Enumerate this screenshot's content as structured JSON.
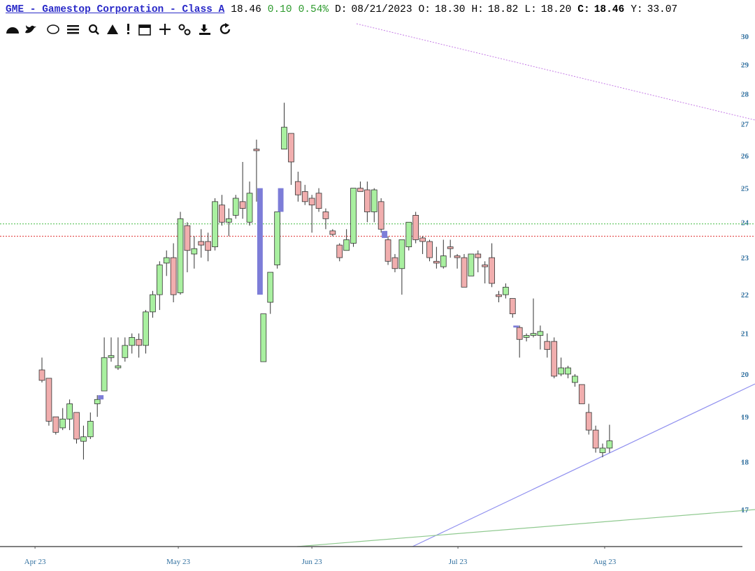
{
  "header": {
    "title": "GME - Gamestop Corporation - Class A",
    "price": "18.46",
    "change": "0.10",
    "change_pct": "0.54%",
    "fields": [
      {
        "label": "D:",
        "value": "08/21/2023"
      },
      {
        "label": "O:",
        "value": "18.30"
      },
      {
        "label": "H:",
        "value": "18.82"
      },
      {
        "label": "L:",
        "value": "18.20"
      },
      {
        "label": "C:",
        "value": "18.46",
        "bold": true
      },
      {
        "label": "Y:",
        "value": "33.07"
      }
    ]
  },
  "chart_data": {
    "type": "candlestick",
    "categories": [],
    "open": [
      20.1,
      19.9,
      19.0,
      18.75,
      18.95,
      19.1,
      18.45,
      18.55,
      19.3,
      19.6,
      20.4,
      20.15,
      20.4,
      20.7,
      20.85,
      20.7,
      21.55,
      22.0,
      22.85,
      23.0,
      22.05,
      23.9,
      23.1,
      23.45,
      23.45,
      23.3,
      24.5,
      24.0,
      24.2,
      24.6,
      24.0,
      26.2,
      20.3,
      21.8,
      22.8,
      26.2,
      26.7,
      25.2,
      24.9,
      24.7,
      24.85,
      24.3,
      23.75,
      23.35,
      23.2,
      23.4,
      25.0,
      24.95,
      24.3,
      24.6,
      23.5,
      23.0,
      22.7,
      23.3,
      24.2,
      23.55,
      23.45,
      22.9,
      22.75,
      23.3,
      23.05,
      23.0,
      22.5,
      23.1,
      22.8,
      23.0,
      22.0,
      22.0,
      21.9,
      21.15,
      20.9,
      20.95,
      20.95,
      20.8,
      20.8,
      20.0,
      20.0,
      19.8,
      19.75,
      19.1,
      18.7,
      18.2,
      18.3
    ],
    "high": [
      20.4,
      19.9,
      19.0,
      19.2,
      19.4,
      19.1,
      18.8,
      19.1,
      19.5,
      20.9,
      20.9,
      20.9,
      20.9,
      21.0,
      21.0,
      21.6,
      22.1,
      22.9,
      23.2,
      23.4,
      24.3,
      24.0,
      23.6,
      23.8,
      23.7,
      24.7,
      24.8,
      24.4,
      24.8,
      25.8,
      25.2,
      26.5,
      21.5,
      22.6,
      24.3,
      27.7,
      26.7,
      25.5,
      25.1,
      24.8,
      25.0,
      24.4,
      23.8,
      23.4,
      23.8,
      25.0,
      25.2,
      25.2,
      25.0,
      24.7,
      23.6,
      23.1,
      23.5,
      24.0,
      24.3,
      23.6,
      23.5,
      23.3,
      23.5,
      23.5,
      23.1,
      23.1,
      23.1,
      23.2,
      22.9,
      23.4,
      22.1,
      22.3,
      21.9,
      21.2,
      21.0,
      21.9,
      21.2,
      21.0,
      20.9,
      20.4,
      20.2,
      20.0,
      19.75,
      19.3,
      18.8,
      18.4,
      18.82
    ],
    "low": [
      19.8,
      18.8,
      18.6,
      18.7,
      18.7,
      18.4,
      18.05,
      18.5,
      19.0,
      19.6,
      20.3,
      20.1,
      20.3,
      20.5,
      20.4,
      20.5,
      21.4,
      21.6,
      22.5,
      21.8,
      22.0,
      22.6,
      22.7,
      23.0,
      22.9,
      23.2,
      23.9,
      23.6,
      24.1,
      24.1,
      23.9,
      24.6,
      20.3,
      21.5,
      22.7,
      26.2,
      25.1,
      24.6,
      24.5,
      23.7,
      24.3,
      23.8,
      23.6,
      22.9,
      23.2,
      23.3,
      24.9,
      24.0,
      24.0,
      23.7,
      22.8,
      22.6,
      22.0,
      23.2,
      23.4,
      23.1,
      22.9,
      22.7,
      22.7,
      23.0,
      22.7,
      22.2,
      22.5,
      22.6,
      22.3,
      22.2,
      21.8,
      21.9,
      21.4,
      20.4,
      20.8,
      20.9,
      20.6,
      20.4,
      19.9,
      19.95,
      19.9,
      19.7,
      19.3,
      18.6,
      18.2,
      18.1,
      18.2
    ],
    "close": [
      19.85,
      18.9,
      18.65,
      18.95,
      19.3,
      18.5,
      18.55,
      18.9,
      19.4,
      20.4,
      20.45,
      20.2,
      20.7,
      20.9,
      20.7,
      21.55,
      22.0,
      22.8,
      23.0,
      22.0,
      24.1,
      23.2,
      23.25,
      23.35,
      23.2,
      24.6,
      24.0,
      24.1,
      24.7,
      24.4,
      24.85,
      26.15,
      21.5,
      22.6,
      24.3,
      26.9,
      25.8,
      24.8,
      24.6,
      24.5,
      24.4,
      24.1,
      23.65,
      23.0,
      23.5,
      25.0,
      24.9,
      24.3,
      24.95,
      23.8,
      22.9,
      22.7,
      23.5,
      24.0,
      23.5,
      23.45,
      23.0,
      22.85,
      23.05,
      23.25,
      23.0,
      22.2,
      23.1,
      23.0,
      22.75,
      22.3,
      21.95,
      22.2,
      21.5,
      20.85,
      20.95,
      21.0,
      21.05,
      20.6,
      19.95,
      20.15,
      20.15,
      19.95,
      19.3,
      18.7,
      18.3,
      18.3,
      18.46
    ],
    "up_color": "#a9f0a0",
    "down_color": "#f1aeae",
    "gaps": {
      "color": "#7d7dd8",
      "after": [
        8,
        31,
        34,
        49,
        68
      ],
      "low": [
        19.4,
        22.0,
        24.3,
        23.55,
        21.15
      ],
      "high": [
        19.5,
        25.0,
        25.0,
        23.75,
        21.2
      ]
    },
    "hlines": [
      {
        "value": 23.95,
        "color": "#44bb44"
      },
      {
        "value": 23.6,
        "color": "#e03333"
      }
    ],
    "xlim": [
      -6.06,
      101.2
    ],
    "xticks": [
      {
        "value": -1,
        "label": "Apr 23"
      },
      {
        "value": 19.7,
        "label": "May 23"
      },
      {
        "value": 39,
        "label": "Jun 23"
      },
      {
        "value": 60.1,
        "label": "Jul 23"
      },
      {
        "value": 81.3,
        "label": "Aug 23"
      }
    ],
    "ylim": [
      16.26,
      30.43
    ],
    "log_y": true,
    "yticks": [
      17,
      18,
      19,
      20,
      21,
      22,
      23,
      24,
      25,
      26,
      27,
      28,
      29,
      30
    ]
  }
}
